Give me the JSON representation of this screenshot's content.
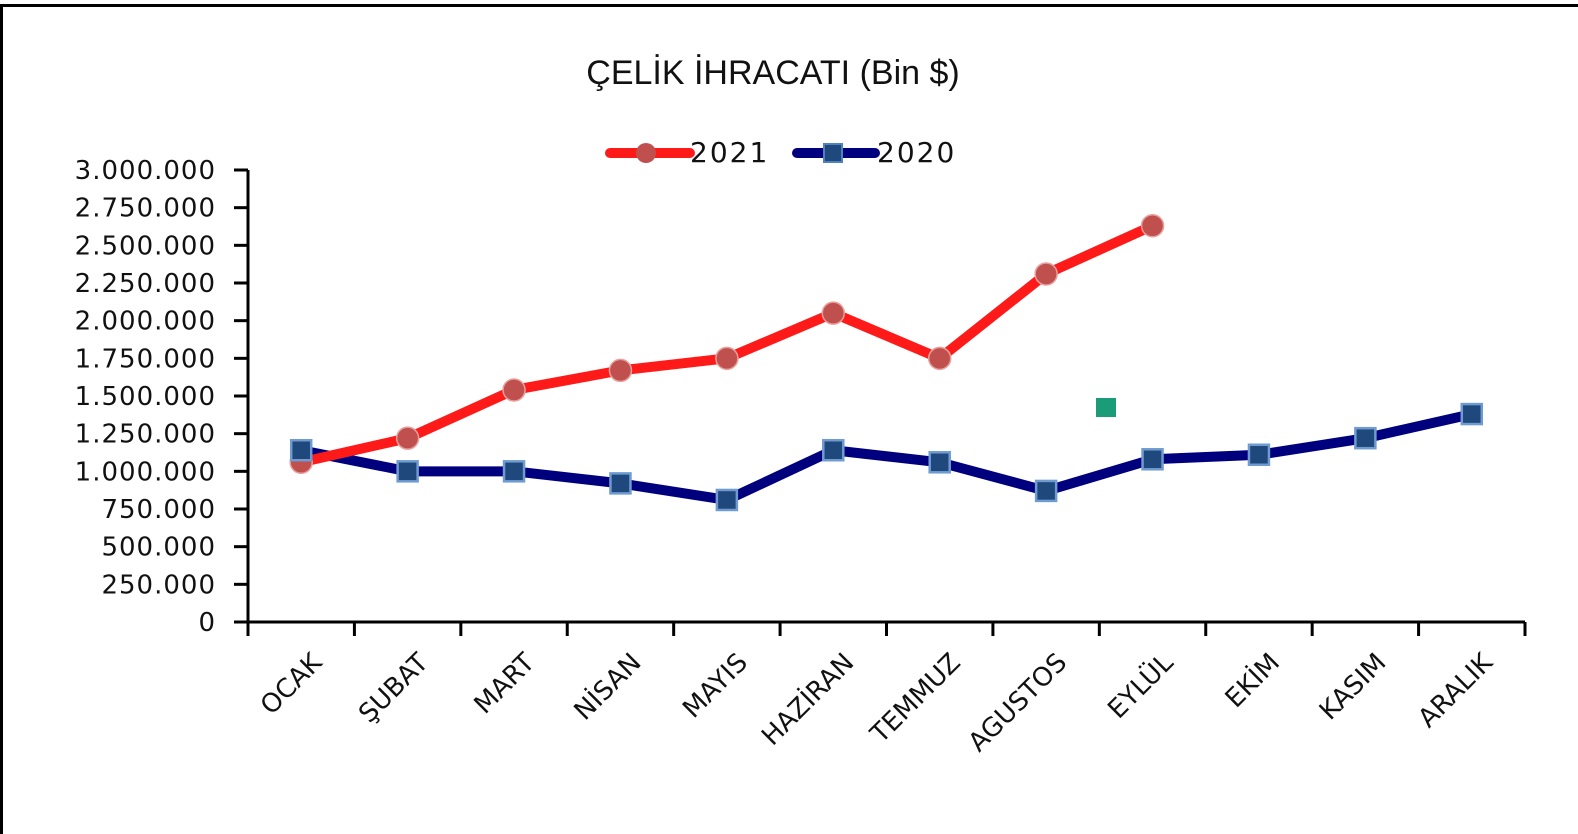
{
  "chart_data": {
    "type": "line",
    "title": "ÇELİK İHRACATI (Bin $)",
    "xlabel": "",
    "ylabel": "",
    "ylim": [
      0,
      3000000
    ],
    "y_ticks": [
      {
        "value": 0,
        "label": "0"
      },
      {
        "value": 250000,
        "label": "250.000"
      },
      {
        "value": 500000,
        "label": "500.000"
      },
      {
        "value": 750000,
        "label": "750.000"
      },
      {
        "value": 1000000,
        "label": "1.000.000"
      },
      {
        "value": 1250000,
        "label": "1.250.000"
      },
      {
        "value": 1500000,
        "label": "1.500.000"
      },
      {
        "value": 1750000,
        "label": "1.750.000"
      },
      {
        "value": 2000000,
        "label": "2.000.000"
      },
      {
        "value": 2250000,
        "label": "2.250.000"
      },
      {
        "value": 2500000,
        "label": "2.500.000"
      },
      {
        "value": 2750000,
        "label": "2.750.000"
      },
      {
        "value": 3000000,
        "label": "3.000.000"
      }
    ],
    "categories": [
      "OCAK",
      "ŞUBAT",
      "MART",
      "NİSAN",
      "MAYIS",
      "HAZİRAN",
      "TEMMUZ",
      "AGUSTOS",
      "EYLÜL",
      "EKİM",
      "KASIM",
      "ARALIK"
    ],
    "grid": false,
    "legend_position": "top-center",
    "series": [
      {
        "name": "2021",
        "color": "#ff1a1a",
        "marker": "circle",
        "marker_color": "#c0504d",
        "values": [
          1060000,
          1220000,
          1540000,
          1670000,
          1750000,
          2050000,
          1750000,
          2310000,
          2630000,
          null,
          null,
          null
        ]
      },
      {
        "name": "2020",
        "color": "#00007f",
        "marker": "square",
        "marker_color": "#1f497d",
        "values": [
          1140000,
          1000000,
          1000000,
          920000,
          810000,
          1140000,
          1060000,
          870000,
          1080000,
          1110000,
          1220000,
          1380000
        ]
      }
    ]
  }
}
